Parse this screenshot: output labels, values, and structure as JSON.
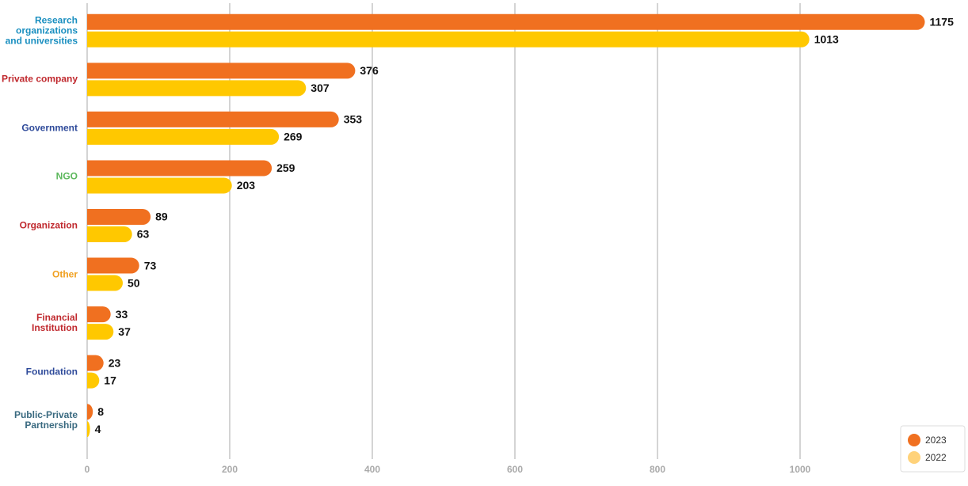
{
  "chart_data": {
    "type": "bar",
    "orientation": "horizontal",
    "categories": [
      "Research organizations and universities",
      "Private company",
      "Government",
      "NGO",
      "Organization",
      "Other",
      "Financial Institution",
      "Foundation",
      "Public-Private Partnership"
    ],
    "category_colors": [
      "#1a8fc0",
      "#c0292e",
      "#2e4a9a",
      "#5cb85c",
      "#c0292e",
      "#f0a020",
      "#c0292e",
      "#2e4a9a",
      "#3a6a80"
    ],
    "series": [
      {
        "name": "2023",
        "color": "#f07020",
        "values": [
          1175,
          376,
          353,
          259,
          89,
          73,
          33,
          23,
          8
        ]
      },
      {
        "name": "2022",
        "color": "#ffc800",
        "values": [
          1013,
          307,
          269,
          203,
          63,
          50,
          37,
          17,
          4
        ]
      }
    ],
    "legend_colors": [
      "#f07020",
      "#ffd27a"
    ],
    "xlim": [
      0,
      1200
    ],
    "xticks": [
      0,
      200,
      400,
      600,
      800,
      1000
    ],
    "grid": true,
    "legend": "bottom-right"
  }
}
